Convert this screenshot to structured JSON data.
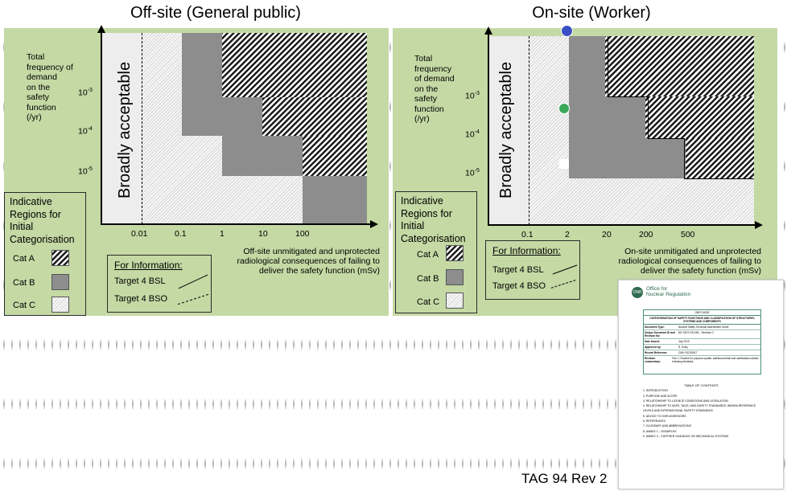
{
  "titles": {
    "left": "Off-site (General public)",
    "right": "On-site (Worker)"
  },
  "chart_data": [
    {
      "type": "heatmap",
      "title": "Off-site (General public)",
      "ylabel": "Total frequency of demand on the safety function (/yr)",
      "xlabel": "Off-site unmitigated and unprotected radiological consequences of failing to deliver the safety function (mSv)",
      "x_ticks": [
        "0.01",
        "0.1",
        "1",
        "10",
        "100"
      ],
      "y_ticks": [
        "10",
        "10",
        "10"
      ],
      "y_tick_exponents": [
        "-3",
        "-4",
        "-5"
      ],
      "region_label": "Broadly acceptable"
    },
    {
      "type": "heatmap",
      "title": "On-site (Worker)",
      "ylabel": "Total frequency of demand on the safety function (/yr)",
      "xlabel": "On-site unmitigated and unprotected radiological consequences of failing to deliver the safety function (mSv)",
      "x_ticks": [
        "0.1",
        "2",
        "20",
        "200",
        "500"
      ],
      "y_ticks": [
        "10",
        "10",
        "10"
      ],
      "y_tick_exponents": [
        "-3",
        "-4",
        "-5"
      ],
      "region_label": "Broadly acceptable"
    }
  ],
  "left": {
    "ylabel_lines": [
      "Total",
      "frequency of demand",
      "on the",
      "safety",
      "function",
      "(/yr)"
    ],
    "xlabel_lines": [
      "Off-site unmitigated and unprotected",
      "radiological consequences of failing to",
      "deliver the safety function (mSv)"
    ]
  },
  "right": {
    "ylabel_lines": [
      "Total",
      "frequency",
      "of demand",
      "on the",
      "safety",
      "function",
      "(/yr)"
    ],
    "xlabel_lines": [
      "On-site unmitigated and unprotected",
      "radiological consequences of failing to",
      "deliver the safety function (mSv)"
    ]
  },
  "legend": {
    "title_lines": [
      "Indicative",
      "Regions for",
      "Initial",
      "Categorisation"
    ],
    "cat_a": "Cat A",
    "cat_b": "Cat B",
    "cat_c": "Cat C"
  },
  "info": {
    "title": "For Information:",
    "bsl": "Target 4 BSL",
    "bso": "Target 4 BSO"
  },
  "document": {
    "org": "Office for",
    "org2": "Nuclear Regulation",
    "logo": "ONR",
    "guide": "ONR GUIDE",
    "heading": "CATEGORISATION OF SAFETY FUNCTIONS AND CLASSIFICATION OF STRUCTURES, SYSTEMS AND COMPONENTS",
    "rows": [
      [
        "Document Type:",
        "Nuclear Safety Technical Assessment Guide"
      ],
      [
        "Unique Document ID and Revision No:",
        "NS-TAST-GD-094 – Revision 2"
      ],
      [
        "Date Issued:",
        "July 2019"
      ],
      [
        "Approved by:",
        "R. Exley"
      ],
      [
        "Record Reference:",
        "CM9: 2023/2617"
      ],
      [
        "Revision commentary:",
        "Rev 1: Routine for purpose update; additional detail and clarifications added following feedback"
      ]
    ],
    "contents_title": "TABLE OF CONTENTS",
    "contents": [
      "1. INTRODUCTION",
      "2. PURPOSE AND SCOPE",
      "3. RELATIONSHIP TO LICENCE CONDITIONS AND LEGISLATION",
      "4. RELATIONSHIP TO SAPS, TAGS, IAEA SAFETY STANDARDS, WENRA REFERENCE LEVELS AND INTERNATIONAL SAFETY STANDARDS",
      "5. ADVICE TO ONR ASSESSORS",
      "6. REFERENCES",
      "7. GLOSSARY AND ABBREVIATIONS",
      "8. ANNEX 1 – EXAMPLES",
      "9. ANNEX 2 – FURTHER GUIDANCE ON MECHANICAL SYSTEMS"
    ]
  },
  "tag": "TAG 94 Rev 2",
  "colors": {
    "panel": "#c4d9a4",
    "cat_b": "#8d8d8d",
    "marker_blue": "#3a4fc4",
    "marker_green": "#3aa85a"
  }
}
